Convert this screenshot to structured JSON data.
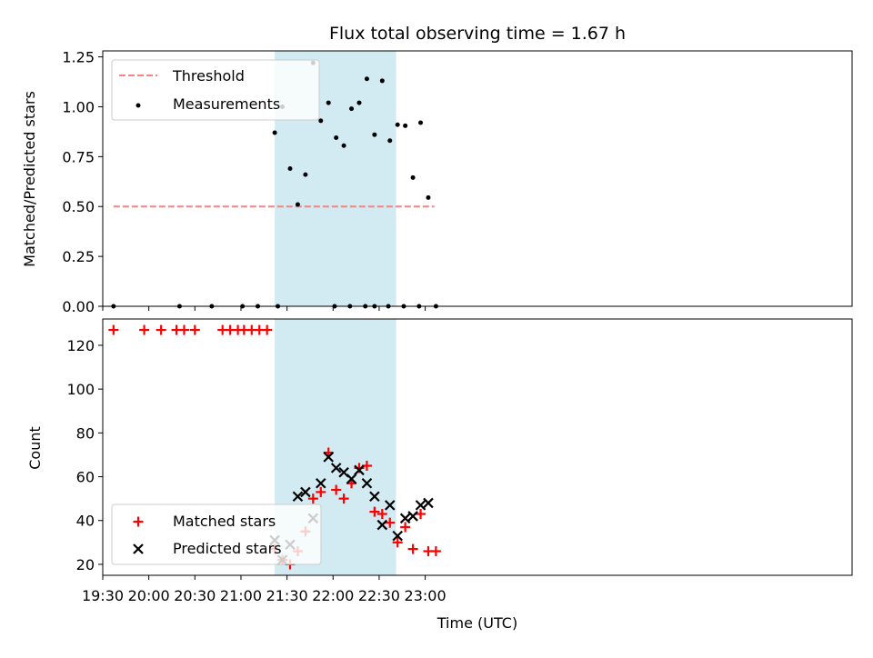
{
  "chart_data": [
    {
      "type": "scatter",
      "title": "Flux total observing time = 1.67 h",
      "ylabel": "Matched/Predicted stars",
      "ylim": [
        0,
        1.28
      ],
      "xlim_min": [
        1170,
        1658
      ],
      "x_unit": "minutes after 00:00 UTC",
      "yticks": [
        "0.00",
        "0.25",
        "0.50",
        "0.75",
        "1.00",
        "1.25"
      ],
      "ytick_values": [
        0,
        0.25,
        0.5,
        0.75,
        1.0,
        1.25
      ],
      "shaded_span": [
        "21:22",
        "22:41"
      ],
      "threshold": {
        "name": "Threshold",
        "y": 0.5,
        "x_start": "19:37",
        "x_end": "23:06",
        "color": "#ff7f7f"
      },
      "legend_placement": "upper-left",
      "series": [
        {
          "name": "Measurements",
          "color": "#000000",
          "points": [
            [
              "19:37",
              0.0
            ],
            [
              "20:20",
              0.0
            ],
            [
              "20:41",
              0.0
            ],
            [
              "21:01",
              0.0
            ],
            [
              "21:11",
              0.0
            ],
            [
              "21:24",
              0.0
            ],
            [
              "22:01",
              0.0
            ],
            [
              "22:11",
              0.0
            ],
            [
              "22:21",
              0.0
            ],
            [
              "22:27",
              0.0
            ],
            [
              "22:36",
              0.0
            ],
            [
              "22:46",
              0.0
            ],
            [
              "22:56",
              0.0
            ],
            [
              "21:22",
              0.87
            ],
            [
              "21:27",
              1.0
            ],
            [
              "21:32",
              0.69
            ],
            [
              "21:37",
              0.51
            ],
            [
              "21:42",
              0.66
            ],
            [
              "21:47",
              1.22
            ],
            [
              "21:52",
              0.93
            ],
            [
              "21:57",
              1.02
            ],
            [
              "22:02",
              0.845
            ],
            [
              "22:07",
              0.805
            ],
            [
              "22:12",
              0.99
            ],
            [
              "22:17",
              1.02
            ],
            [
              "22:22",
              1.14
            ],
            [
              "22:27",
              0.86
            ],
            [
              "22:32",
              1.13
            ],
            [
              "22:37",
              0.83
            ],
            [
              "22:42",
              0.91
            ],
            [
              "22:47",
              0.905
            ],
            [
              "22:52",
              0.645
            ],
            [
              "22:57",
              0.92
            ],
            [
              "23:02",
              0.545
            ],
            [
              "23:07",
              0.0
            ]
          ]
        }
      ]
    },
    {
      "type": "scatter",
      "xlabel": "Time (UTC)",
      "ylabel": "Count",
      "ylim": [
        15,
        132
      ],
      "yticks": [
        "20",
        "40",
        "60",
        "80",
        "100",
        "120"
      ],
      "ytick_values": [
        20,
        40,
        60,
        80,
        100,
        120
      ],
      "xticks": [
        "19:30",
        "20:00",
        "20:30",
        "21:00",
        "21:30",
        "22:00",
        "22:30",
        "23:00"
      ],
      "xtick_values": [
        1170,
        1200,
        1230,
        1260,
        1290,
        1320,
        1350,
        1380
      ],
      "legend_placement": "lower-left",
      "series": [
        {
          "name": "Matched stars",
          "marker": "plus",
          "color": "#ff0000",
          "points": [
            [
              "19:37",
              127
            ],
            [
              "19:57",
              127
            ],
            [
              "20:08",
              127
            ],
            [
              "20:18",
              127
            ],
            [
              "20:23",
              127
            ],
            [
              "20:30",
              127
            ],
            [
              "20:48",
              127
            ],
            [
              "20:53",
              127
            ],
            [
              "20:58",
              127
            ],
            [
              "21:02",
              127
            ],
            [
              "21:07",
              127
            ],
            [
              "21:12",
              127
            ],
            [
              "21:17",
              127
            ],
            [
              "21:22",
              27
            ],
            [
              "21:27",
              22
            ],
            [
              "21:32",
              20
            ],
            [
              "21:37",
              26
            ],
            [
              "21:42",
              35
            ],
            [
              "21:47",
              50
            ],
            [
              "21:52",
              53
            ],
            [
              "21:57",
              71
            ],
            [
              "22:02",
              54
            ],
            [
              "22:07",
              50
            ],
            [
              "22:12",
              57
            ],
            [
              "22:17",
              64
            ],
            [
              "22:22",
              65
            ],
            [
              "22:27",
              44
            ],
            [
              "22:32",
              43
            ],
            [
              "22:37",
              39
            ],
            [
              "22:42",
              30
            ],
            [
              "22:47",
              37
            ],
            [
              "22:52",
              27
            ],
            [
              "22:57",
              43
            ],
            [
              "23:02",
              26
            ],
            [
              "23:07",
              26
            ]
          ]
        },
        {
          "name": "Predicted stars",
          "marker": "x",
          "color": "#000000",
          "points": [
            [
              "21:22",
              31
            ],
            [
              "21:27",
              22
            ],
            [
              "21:32",
              29
            ],
            [
              "21:37",
              51
            ],
            [
              "21:42",
              53
            ],
            [
              "21:47",
              41
            ],
            [
              "21:52",
              57
            ],
            [
              "21:57",
              69
            ],
            [
              "22:02",
              64
            ],
            [
              "22:07",
              62
            ],
            [
              "22:12",
              59
            ],
            [
              "22:17",
              63
            ],
            [
              "22:22",
              57
            ],
            [
              "22:27",
              51
            ],
            [
              "22:32",
              38
            ],
            [
              "22:37",
              47
            ],
            [
              "22:42",
              33
            ],
            [
              "22:47",
              41
            ],
            [
              "22:52",
              42
            ],
            [
              "22:57",
              47
            ],
            [
              "23:02",
              48
            ]
          ]
        }
      ]
    }
  ]
}
